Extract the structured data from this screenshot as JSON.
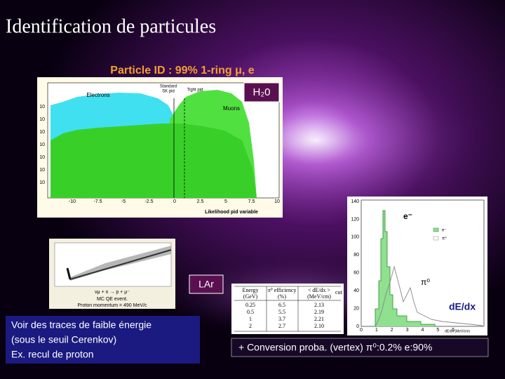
{
  "title": "Identification de particules",
  "subtitle": "Particle ID : 99% 1-ring μ, e",
  "histogram": {
    "electrons": "Electrons",
    "muons": "Muons",
    "standard": [
      "Standard",
      "SK pid"
    ],
    "tight": "Tight pid",
    "x_ticks": [
      "-10",
      "-7.5",
      "-5",
      "-2.5",
      "0",
      "2.5",
      "5",
      "7.5",
      "10"
    ],
    "y_ticks": [
      "10",
      "10",
      "10",
      "10",
      "10",
      "10",
      "10"
    ],
    "x_label": "Likelihood pid variable",
    "badge": "H₂0"
  },
  "event_display": {
    "reaction": "νμ + n → p + μ⁻",
    "caption": [
      "MC QE event.",
      "Proton momentum = 490 MeV/c"
    ]
  },
  "lar_badge": "LAr",
  "table": {
    "header": [
      "Energy",
      "π⁰ efficiency",
      "< dE/dx >"
    ],
    "header_sub": "cut",
    "units": [
      "(GeV)",
      "(%)",
      "(MeV/cm)"
    ],
    "rows": [
      [
        "0.25",
        "6.5",
        "2.13"
      ],
      [
        "0.5",
        "5.5",
        "2.19"
      ],
      [
        "1",
        "3.7",
        "2.21"
      ],
      [
        "2",
        "2.7",
        "2.10"
      ]
    ]
  },
  "dedx_plot": {
    "electron_label": "e⁻",
    "pi0_label": "π⁰",
    "axis_label": "dE/dx",
    "legend": [
      "e⁻",
      "π⁰"
    ],
    "y_ticks": [
      "140",
      "120",
      "100",
      "80",
      "60",
      "40",
      "20",
      "0"
    ],
    "x_ticks": [
      "0",
      "1",
      "2",
      "3",
      "4",
      "5",
      "6"
    ],
    "x_label": "dE/dx (MeV/cm)"
  },
  "notes": [
    "Voir des traces de faible énergie",
    "(sous le seuil Cerenkov)",
    "Ex. recul de proton"
  ],
  "conversion": "+ Conversion proba. (vertex) π⁰:0.2% e:90%"
}
